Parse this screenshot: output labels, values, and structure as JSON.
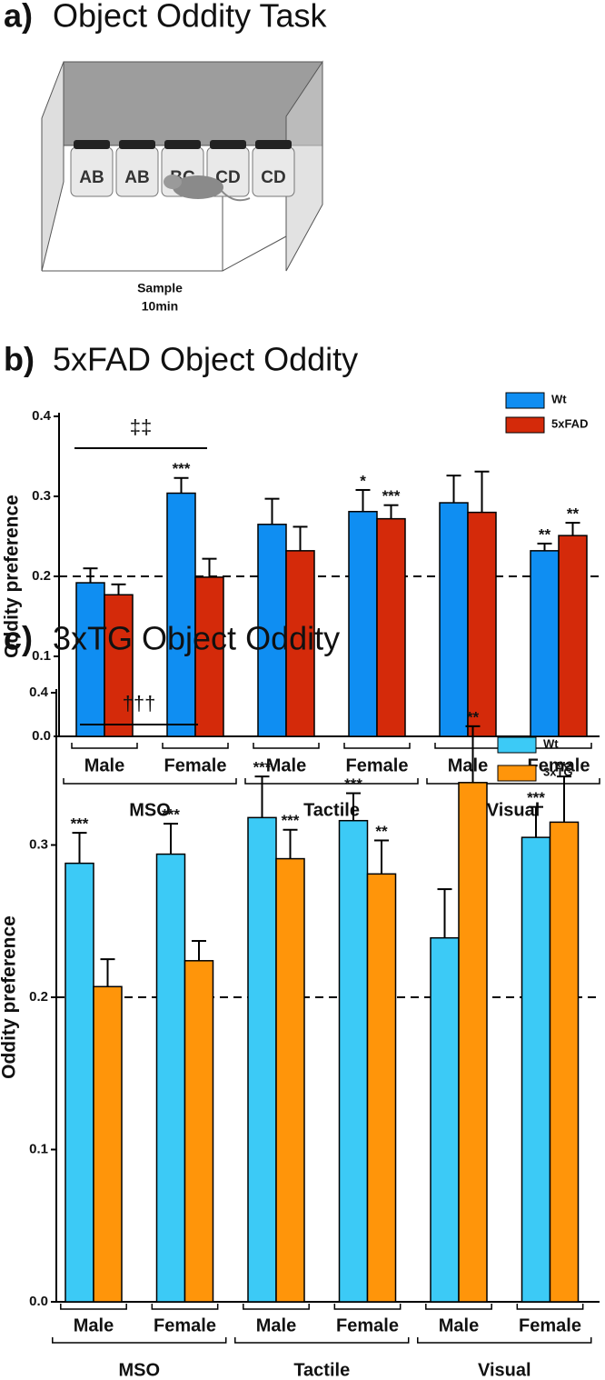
{
  "panel_a": {
    "label": "a)",
    "title": "Object Oddity Task",
    "objects": [
      "AB",
      "AB",
      "BC",
      "CD",
      "CD"
    ],
    "phase": "Sample",
    "duration": "10min"
  },
  "chart_data": [
    {
      "type": "bar",
      "panel_label": "b)",
      "title": "5xFAD Object Oddity",
      "y_label": "Oddity preference",
      "categories": [
        "Male",
        "Female",
        "Male",
        "Female",
        "Male",
        "Female"
      ],
      "groups": [
        "MSO",
        "Tactile",
        "Visual"
      ],
      "series": [
        {
          "name": "Wt",
          "color": "#0f8ef2",
          "values": [
            0.192,
            0.304,
            0.265,
            0.281,
            0.292,
            0.232
          ],
          "errors": [
            0.018,
            0.019,
            0.032,
            0.027,
            0.034,
            0.009
          ],
          "significance": [
            null,
            "***",
            null,
            "*",
            null,
            "**"
          ]
        },
        {
          "name": "5xFAD",
          "color": "#d42a0a",
          "values": [
            0.177,
            0.199,
            0.232,
            0.272,
            0.28,
            0.251
          ],
          "errors": [
            0.013,
            0.023,
            0.03,
            0.017,
            0.051,
            0.016
          ],
          "significance": [
            null,
            null,
            null,
            "***",
            null,
            "**"
          ]
        }
      ],
      "comparison_label": "‡‡",
      "reference_line": 0.2,
      "ylim": [
        0,
        0.4
      ],
      "yticks": [
        {
          "value": 0,
          "label": "0.0"
        },
        0.1,
        0.2,
        0.3,
        0.4
      ],
      "legend": "upper right"
    },
    {
      "type": "bar",
      "panel_label": "c)",
      "title": "3xTG Object Oddity",
      "y_label": "Oddity preference",
      "categories": [
        "Male",
        "Female",
        "Male",
        "Female",
        "Male",
        "Female"
      ],
      "groups": [
        "MSO",
        "Tactile",
        "Visual"
      ],
      "series": [
        {
          "name": "Wt",
          "color": "#3ccaf6",
          "values": [
            0.288,
            0.294,
            0.318,
            0.316,
            0.239,
            0.305
          ],
          "errors": [
            0.02,
            0.02,
            0.027,
            0.018,
            0.032,
            0.02
          ],
          "significance": [
            "***",
            "***",
            "***",
            "***",
            null,
            "***"
          ]
        },
        {
          "name": "3xTG",
          "color": "#ff950a",
          "values": [
            0.207,
            0.224,
            0.291,
            0.281,
            0.341,
            0.315
          ],
          "errors": [
            0.018,
            0.013,
            0.019,
            0.022,
            0.037,
            0.03
          ],
          "significance": [
            null,
            null,
            "***",
            "**",
            "**",
            "***"
          ]
        }
      ],
      "comparison_label": "†††",
      "reference_line": 0.2,
      "ylim": [
        0,
        0.4
      ],
      "yticks": [
        {
          "value": 0,
          "label": "0.0"
        },
        0.1,
        0.2,
        0.3,
        0.4
      ],
      "legend": "upper right"
    }
  ]
}
